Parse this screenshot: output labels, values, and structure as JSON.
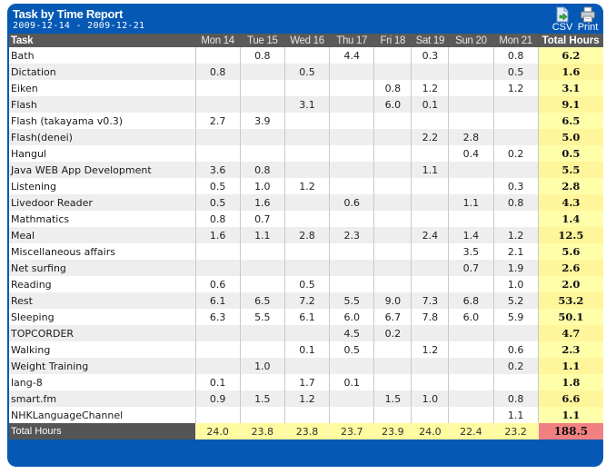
{
  "header": {
    "title": "Task by Time Report",
    "date_range": "2009-12-14 - 2009-12-21",
    "csv_label": "CSV",
    "print_label": "Print"
  },
  "columns": {
    "task": "Task",
    "days": [
      "Mon 14",
      "Tue 15",
      "Wed 16",
      "Thu 17",
      "Fri 18",
      "Sat 19",
      "Sun 20",
      "Mon 21"
    ],
    "total": "Total Hours"
  },
  "rows": [
    {
      "task": "Bath",
      "values": [
        "",
        "0.8",
        "",
        "4.4",
        "",
        "0.3",
        "",
        "0.8"
      ],
      "total": "6.2"
    },
    {
      "task": "Dictation",
      "values": [
        "0.8",
        "",
        "0.5",
        "",
        "",
        "",
        "",
        "0.5"
      ],
      "total": "1.6"
    },
    {
      "task": "Eiken",
      "values": [
        "",
        "",
        "",
        "",
        "0.8",
        "1.2",
        "",
        "1.2"
      ],
      "total": "3.1"
    },
    {
      "task": "Flash",
      "values": [
        "",
        "",
        "3.1",
        "",
        "6.0",
        "0.1",
        "",
        ""
      ],
      "total": "9.1"
    },
    {
      "task": "Flash (takayama v0.3)",
      "values": [
        "2.7",
        "3.9",
        "",
        "",
        "",
        "",
        "",
        ""
      ],
      "total": "6.5"
    },
    {
      "task": "Flash(denei)",
      "values": [
        "",
        "",
        "",
        "",
        "",
        "2.2",
        "2.8",
        ""
      ],
      "total": "5.0"
    },
    {
      "task": "Hangul",
      "values": [
        "",
        "",
        "",
        "",
        "",
        "",
        "0.4",
        "0.2"
      ],
      "total": "0.5"
    },
    {
      "task": "Java WEB App Development",
      "values": [
        "3.6",
        "0.8",
        "",
        "",
        "",
        "1.1",
        "",
        ""
      ],
      "total": "5.5"
    },
    {
      "task": "Listening",
      "values": [
        "0.5",
        "1.0",
        "1.2",
        "",
        "",
        "",
        "",
        "0.3"
      ],
      "total": "2.8"
    },
    {
      "task": "Livedoor Reader",
      "values": [
        "0.5",
        "1.6",
        "",
        "0.6",
        "",
        "",
        "1.1",
        "0.8"
      ],
      "total": "4.3"
    },
    {
      "task": "Mathmatics",
      "values": [
        "0.8",
        "0.7",
        "",
        "",
        "",
        "",
        "",
        ""
      ],
      "total": "1.4"
    },
    {
      "task": "Meal",
      "values": [
        "1.6",
        "1.1",
        "2.8",
        "2.3",
        "",
        "2.4",
        "1.4",
        "1.2"
      ],
      "total": "12.5"
    },
    {
      "task": "Miscellaneous affairs",
      "values": [
        "",
        "",
        "",
        "",
        "",
        "",
        "3.5",
        "2.1"
      ],
      "total": "5.6"
    },
    {
      "task": "Net surfing",
      "values": [
        "",
        "",
        "",
        "",
        "",
        "",
        "0.7",
        "1.9"
      ],
      "total": "2.6"
    },
    {
      "task": "Reading",
      "values": [
        "0.6",
        "",
        "0.5",
        "",
        "",
        "",
        "",
        "1.0"
      ],
      "total": "2.0"
    },
    {
      "task": "Rest",
      "values": [
        "6.1",
        "6.5",
        "7.2",
        "5.5",
        "9.0",
        "7.3",
        "6.8",
        "5.2"
      ],
      "total": "53.2"
    },
    {
      "task": "Sleeping",
      "values": [
        "6.3",
        "5.5",
        "6.1",
        "6.0",
        "6.7",
        "7.8",
        "6.0",
        "5.9"
      ],
      "total": "50.1"
    },
    {
      "task": "TOPCORDER",
      "values": [
        "",
        "",
        "",
        "4.5",
        "0.2",
        "",
        "",
        ""
      ],
      "total": "4.7"
    },
    {
      "task": "Walking",
      "values": [
        "",
        "",
        "0.1",
        "0.5",
        "",
        "1.2",
        "",
        "0.6"
      ],
      "total": "2.3"
    },
    {
      "task": "Weight Training",
      "values": [
        "",
        "1.0",
        "",
        "",
        "",
        "",
        "",
        "0.2"
      ],
      "total": "1.1"
    },
    {
      "task": "lang-8",
      "values": [
        "0.1",
        "",
        "1.7",
        "0.1",
        "",
        "",
        "",
        ""
      ],
      "total": "1.8"
    },
    {
      "task": "smart.fm",
      "values": [
        "0.9",
        "1.5",
        "1.2",
        "",
        "1.5",
        "1.0",
        "",
        "0.8"
      ],
      "total": "6.6"
    },
    {
      "task": "NHKLanguageChannel",
      "values": [
        "",
        "",
        "",
        "",
        "",
        "",
        "",
        "1.1"
      ],
      "total": "1.1"
    }
  ],
  "footer": {
    "label": "Total Hours",
    "values": [
      "24.0",
      "23.8",
      "23.8",
      "23.7",
      "23.9",
      "24.0",
      "22.4",
      "23.2"
    ],
    "grand_total": "188.5"
  },
  "colors": {
    "header_blue": "#0558b4",
    "column_header_gray": "#595959",
    "total_column_yellow": "#ffffaa",
    "grand_total_red": "#f18080"
  }
}
